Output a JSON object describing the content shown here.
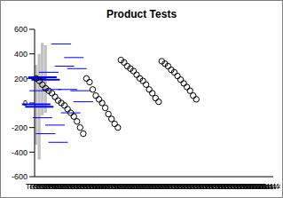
{
  "chart_data": {
    "type": "box",
    "title": "Product Tests",
    "categories": [
      "Test 1",
      "Test 2",
      "Test 3",
      "Test 4"
    ],
    "ylim": [
      -600,
      600
    ],
    "yticks": [
      -600,
      -400,
      -200,
      0,
      200,
      400,
      600
    ],
    "range_low": [
      -340,
      -460,
      -100,
      -80
    ],
    "range_high": [
      310,
      400,
      490,
      470
    ],
    "means": [
      -10,
      -30,
      210,
      190
    ],
    "lines": [
      [
        200,
        100,
        -120,
        -250
      ],
      [
        250,
        110,
        -180,
        -320
      ],
      [
        480,
        300,
        110,
        -80
      ],
      [
        370,
        280,
        100,
        10
      ]
    ],
    "points": [
      [
        200,
        180,
        150,
        120,
        100,
        80,
        50,
        20,
        0,
        -20,
        -50,
        -80,
        -110,
        -150,
        -200,
        -250
      ],
      [
        200,
        170,
        110,
        60,
        30,
        0,
        -40,
        -90,
        -130,
        -170,
        -200
      ],
      [
        350,
        330,
        300,
        280,
        260,
        230,
        200,
        180,
        150,
        110,
        80,
        40,
        10
      ],
      [
        340,
        320,
        300,
        270,
        250,
        220,
        190,
        160,
        130,
        100,
        60,
        30
      ]
    ]
  }
}
